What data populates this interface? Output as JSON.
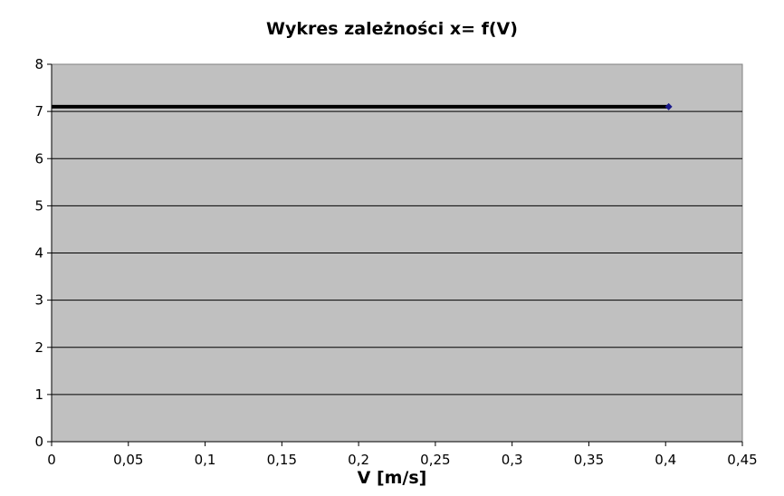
{
  "chart_data": {
    "type": "line",
    "title": "Wykres zależności x= f(V)",
    "xlabel": "V [m/s]",
    "ylabel": "",
    "xlim": [
      0,
      0.45
    ],
    "ylim": [
      0,
      8
    ],
    "x_ticks": [
      "0",
      "0,05",
      "0,1",
      "0,15",
      "0,2",
      "0,25",
      "0,3",
      "0,35",
      "0,4",
      "0,45"
    ],
    "y_ticks": [
      "0",
      "1",
      "2",
      "3",
      "4",
      "5",
      "6",
      "7",
      "8"
    ],
    "grid": true,
    "legend": "none",
    "series": [
      {
        "x": [
          0,
          0.402
        ],
        "y": [
          7.1,
          7.1
        ],
        "line_color": "#000000",
        "marker_color": "#1a1a8c"
      }
    ]
  },
  "colors": {
    "plot_background": "#c0c0c0",
    "gridline": "#000000"
  }
}
